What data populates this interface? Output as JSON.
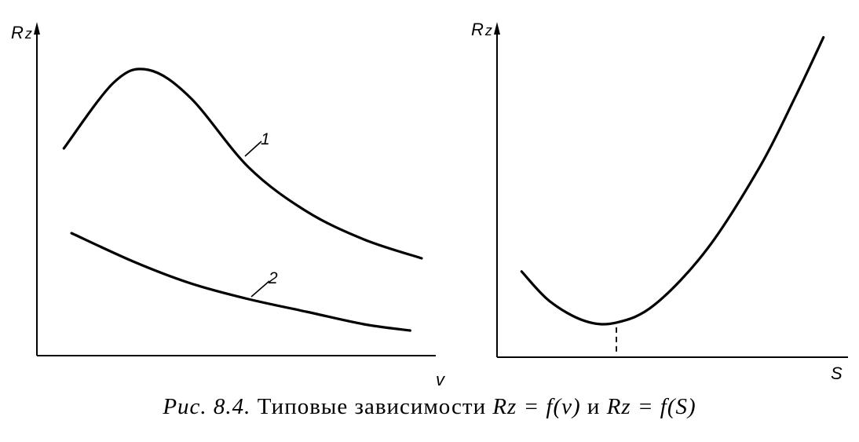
{
  "chart_data": [
    {
      "type": "line",
      "ylabel": "Rz",
      "xlabel": "v",
      "grid": false,
      "x_ticks": false,
      "y_ticks": false,
      "series": [
        {
          "name": "1",
          "x": [
            0.07,
            0.2,
            0.29,
            0.4,
            0.55,
            0.7,
            0.85,
            1.0
          ],
          "y": [
            0.66,
            0.87,
            0.91,
            0.82,
            0.6,
            0.46,
            0.37,
            0.31
          ]
        },
        {
          "name": "2",
          "x": [
            0.09,
            0.25,
            0.4,
            0.55,
            0.7,
            0.85,
            0.97
          ],
          "y": [
            0.39,
            0.3,
            0.23,
            0.18,
            0.14,
            0.1,
            0.08
          ]
        }
      ]
    },
    {
      "type": "line",
      "ylabel": "Rz",
      "xlabel": "S",
      "grid": false,
      "x_ticks": false,
      "y_ticks": false,
      "series": [
        {
          "x": [
            0.07,
            0.15,
            0.25,
            0.34,
            0.45,
            0.6,
            0.75,
            0.85,
            0.93
          ],
          "y": [
            0.26,
            0.17,
            0.11,
            0.105,
            0.16,
            0.33,
            0.58,
            0.79,
            0.97
          ]
        }
      ],
      "marker_dashed_x": 0.34
    }
  ],
  "caption": {
    "prefix": "Рис. 8.4.",
    "text": " Типовые зависимости ",
    "formula1": "Rz = f(v)",
    "conj": " и ",
    "formula2": "Rz = f(S)"
  }
}
